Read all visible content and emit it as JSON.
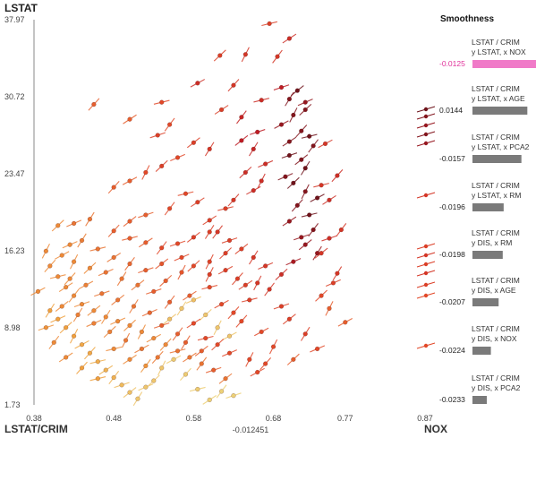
{
  "y_axis_label": "LSTAT",
  "x_axis_label": "LSTAT/CRIM",
  "x_axis_right_label": "NOX",
  "x_cursor_value": "-0.012451",
  "panel": {
    "title": "Smoothness",
    "items": [
      {
        "line1": "LSTAT / CRIM",
        "line2": "y LSTAT, x NOX",
        "value": "-0.0125",
        "selected": true
      },
      {
        "line1": "LSTAT / CRIM",
        "line2": "y LSTAT, x AGE",
        "value": "0.0144",
        "selected": false
      },
      {
        "line1": "LSTAT / CRIM",
        "line2": "y LSTAT, x PCA2",
        "value": "-0.0157",
        "selected": false
      },
      {
        "line1": "LSTAT / CRIM",
        "line2": "y LSTAT, x RM",
        "value": "-0.0196",
        "selected": false
      },
      {
        "line1": "LSTAT / CRIM",
        "line2": "y DIS, x RM",
        "value": "-0.0198",
        "selected": false
      },
      {
        "line1": "LSTAT / CRIM",
        "line2": "y DIS, x AGE",
        "value": "-0.0207",
        "selected": false
      },
      {
        "line1": "LSTAT / CRIM",
        "line2": "y DIS, x NOX",
        "value": "-0.0224",
        "selected": false
      },
      {
        "line1": "LSTAT / CRIM",
        "line2": "y DIS, x PCA2",
        "value": "-0.0233",
        "selected": false
      }
    ]
  },
  "colors": {
    "selected_bar": "#f07ac8",
    "bar": "#7a7a7a",
    "selected_text": "#e0309a"
  },
  "chart_data": {
    "type": "scatter",
    "title": "",
    "xlabel": "NOX",
    "ylabel": "LSTAT",
    "xlim": [
      0.38,
      0.87
    ],
    "ylim": [
      1.73,
      37.97
    ],
    "xticks": [
      "0.38",
      "0.48",
      "0.58",
      "0.68",
      "0.77",
      "0.87"
    ],
    "yticks": [
      "1.73",
      "8.98",
      "16.23",
      "23.47",
      "30.72",
      "37.97"
    ],
    "grid": false,
    "glyph": "dot with slope segment; color encodes value from pale yellow through orange and red to dark maroon",
    "points": [
      [
        0.675,
        37.6,
        0.5
      ],
      [
        0.7,
        36.2,
        0.6
      ],
      [
        0.685,
        34.5,
        0.55
      ],
      [
        0.69,
        31.6,
        0.7
      ],
      [
        0.71,
        31.3,
        0.9
      ],
      [
        0.7,
        30.5,
        0.85
      ],
      [
        0.72,
        30.2,
        0.8
      ],
      [
        0.72,
        29.5,
        0.85
      ],
      [
        0.705,
        29.0,
        0.85
      ],
      [
        0.69,
        28.1,
        0.8
      ],
      [
        0.715,
        27.5,
        0.85
      ],
      [
        0.725,
        27.0,
        0.9
      ],
      [
        0.7,
        26.5,
        0.85
      ],
      [
        0.73,
        26.1,
        0.85
      ],
      [
        0.7,
        25.2,
        0.9
      ],
      [
        0.715,
        24.8,
        0.85
      ],
      [
        0.72,
        24.0,
        0.9
      ],
      [
        0.695,
        23.2,
        0.85
      ],
      [
        0.705,
        22.6,
        0.9
      ],
      [
        0.72,
        21.8,
        0.85
      ],
      [
        0.735,
        21.2,
        0.9
      ],
      [
        0.71,
        20.5,
        0.85
      ],
      [
        0.725,
        19.6,
        0.9
      ],
      [
        0.7,
        19.0,
        0.8
      ],
      [
        0.73,
        18.2,
        0.85
      ],
      [
        0.715,
        17.5,
        0.8
      ],
      [
        0.72,
        16.8,
        0.8
      ],
      [
        0.735,
        16.0,
        0.8
      ],
      [
        0.705,
        15.2,
        0.75
      ],
      [
        0.613,
        34.6,
        0.5
      ],
      [
        0.645,
        34.7,
        0.55
      ],
      [
        0.585,
        32.0,
        0.6
      ],
      [
        0.63,
        31.8,
        0.55
      ],
      [
        0.665,
        30.4,
        0.6
      ],
      [
        0.615,
        29.5,
        0.5
      ],
      [
        0.64,
        28.8,
        0.65
      ],
      [
        0.66,
        27.4,
        0.7
      ],
      [
        0.64,
        26.6,
        0.7
      ],
      [
        0.655,
        25.8,
        0.65
      ],
      [
        0.67,
        24.4,
        0.6
      ],
      [
        0.645,
        23.6,
        0.6
      ],
      [
        0.665,
        22.8,
        0.6
      ],
      [
        0.655,
        21.9,
        0.6
      ],
      [
        0.63,
        21.0,
        0.55
      ],
      [
        0.62,
        20.2,
        0.5
      ],
      [
        0.6,
        19.1,
        0.5
      ],
      [
        0.61,
        18.0,
        0.55
      ],
      [
        0.625,
        17.2,
        0.5
      ],
      [
        0.64,
        16.4,
        0.5
      ],
      [
        0.655,
        15.6,
        0.55
      ],
      [
        0.67,
        14.8,
        0.55
      ],
      [
        0.69,
        14.0,
        0.6
      ],
      [
        0.66,
        13.2,
        0.55
      ],
      [
        0.745,
        26.3,
        0.55
      ],
      [
        0.76,
        23.3,
        0.6
      ],
      [
        0.74,
        22.4,
        0.55
      ],
      [
        0.75,
        21.0,
        0.6
      ],
      [
        0.765,
        18.2,
        0.55
      ],
      [
        0.75,
        17.4,
        0.6
      ],
      [
        0.74,
        16.0,
        0.55
      ],
      [
        0.76,
        14.1,
        0.55
      ],
      [
        0.755,
        13.2,
        0.5
      ],
      [
        0.74,
        12.0,
        0.45
      ],
      [
        0.75,
        10.8,
        0.4
      ],
      [
        0.77,
        9.5,
        0.4
      ],
      [
        0.455,
        30.0,
        0.4
      ],
      [
        0.54,
        30.2,
        0.45
      ],
      [
        0.5,
        28.6,
        0.4
      ],
      [
        0.55,
        28.1,
        0.45
      ],
      [
        0.535,
        27.1,
        0.5
      ],
      [
        0.58,
        26.4,
        0.5
      ],
      [
        0.6,
        25.8,
        0.55
      ],
      [
        0.56,
        25.0,
        0.45
      ],
      [
        0.54,
        24.2,
        0.5
      ],
      [
        0.52,
        23.6,
        0.45
      ],
      [
        0.5,
        22.8,
        0.4
      ],
      [
        0.48,
        22.2,
        0.4
      ],
      [
        0.57,
        21.6,
        0.45
      ],
      [
        0.585,
        20.8,
        0.5
      ],
      [
        0.55,
        20.2,
        0.45
      ],
      [
        0.52,
        19.6,
        0.4
      ],
      [
        0.5,
        19.0,
        0.4
      ],
      [
        0.45,
        19.2,
        0.35
      ],
      [
        0.43,
        18.8,
        0.35
      ],
      [
        0.41,
        18.6,
        0.3
      ],
      [
        0.395,
        16.2,
        0.3
      ],
      [
        0.385,
        12.4,
        0.3
      ],
      [
        0.48,
        18.1,
        0.4
      ],
      [
        0.5,
        17.4,
        0.4
      ],
      [
        0.52,
        17.0,
        0.4
      ],
      [
        0.54,
        16.5,
        0.45
      ],
      [
        0.56,
        16.9,
        0.45
      ],
      [
        0.58,
        17.5,
        0.5
      ],
      [
        0.6,
        18.0,
        0.5
      ],
      [
        0.565,
        15.6,
        0.45
      ],
      [
        0.58,
        14.8,
        0.45
      ],
      [
        0.6,
        14.0,
        0.5
      ],
      [
        0.62,
        14.4,
        0.5
      ],
      [
        0.635,
        13.6,
        0.5
      ],
      [
        0.6,
        12.8,
        0.45
      ],
      [
        0.575,
        12.0,
        0.4
      ],
      [
        0.55,
        11.4,
        0.4
      ],
      [
        0.53,
        12.4,
        0.4
      ],
      [
        0.51,
        13.0,
        0.35
      ],
      [
        0.49,
        13.6,
        0.35
      ],
      [
        0.47,
        14.2,
        0.35
      ],
      [
        0.45,
        14.6,
        0.3
      ],
      [
        0.43,
        15.2,
        0.3
      ],
      [
        0.415,
        15.8,
        0.3
      ],
      [
        0.4,
        14.8,
        0.3
      ],
      [
        0.41,
        13.8,
        0.3
      ],
      [
        0.42,
        12.8,
        0.3
      ],
      [
        0.43,
        12.0,
        0.3
      ],
      [
        0.44,
        11.2,
        0.3
      ],
      [
        0.455,
        10.6,
        0.3
      ],
      [
        0.47,
        10.0,
        0.3
      ],
      [
        0.485,
        9.6,
        0.3
      ],
      [
        0.5,
        9.2,
        0.3
      ],
      [
        0.515,
        8.6,
        0.3
      ],
      [
        0.53,
        8.0,
        0.3
      ],
      [
        0.545,
        7.4,
        0.3
      ],
      [
        0.56,
        6.8,
        0.35
      ],
      [
        0.575,
        6.2,
        0.35
      ],
      [
        0.59,
        5.6,
        0.35
      ],
      [
        0.605,
        5.0,
        0.4
      ],
      [
        0.62,
        4.2,
        0.35
      ],
      [
        0.4,
        10.6,
        0.25
      ],
      [
        0.41,
        9.8,
        0.25
      ],
      [
        0.42,
        9.0,
        0.25
      ],
      [
        0.43,
        8.2,
        0.25
      ],
      [
        0.44,
        7.4,
        0.22
      ],
      [
        0.45,
        6.6,
        0.22
      ],
      [
        0.46,
        5.8,
        0.2
      ],
      [
        0.47,
        5.0,
        0.18
      ],
      [
        0.48,
        4.3,
        0.18
      ],
      [
        0.49,
        3.6,
        0.15
      ],
      [
        0.5,
        2.9,
        0.12
      ],
      [
        0.51,
        2.3,
        0.1
      ],
      [
        0.52,
        3.4,
        0.1
      ],
      [
        0.53,
        4.0,
        0.1
      ],
      [
        0.54,
        5.2,
        0.1
      ],
      [
        0.555,
        6.0,
        0.08
      ],
      [
        0.57,
        4.6,
        0.08
      ],
      [
        0.585,
        3.2,
        0.08
      ],
      [
        0.6,
        2.2,
        0.06
      ],
      [
        0.615,
        3.0,
        0.06
      ],
      [
        0.63,
        2.6,
        0.06
      ],
      [
        0.55,
        9.8,
        0.12
      ],
      [
        0.565,
        10.8,
        0.1
      ],
      [
        0.58,
        11.6,
        0.12
      ],
      [
        0.595,
        10.2,
        0.1
      ],
      [
        0.61,
        9.0,
        0.1
      ],
      [
        0.625,
        8.2,
        0.1
      ],
      [
        0.44,
        5.2,
        0.25
      ],
      [
        0.46,
        4.2,
        0.25
      ],
      [
        0.42,
        6.2,
        0.3
      ],
      [
        0.405,
        7.6,
        0.3
      ],
      [
        0.395,
        9.0,
        0.28
      ],
      [
        0.415,
        11.0,
        0.3
      ],
      [
        0.435,
        10.2,
        0.32
      ],
      [
        0.455,
        9.4,
        0.32
      ],
      [
        0.475,
        8.6,
        0.32
      ],
      [
        0.495,
        7.8,
        0.34
      ],
      [
        0.515,
        7.0,
        0.34
      ],
      [
        0.535,
        6.2,
        0.34
      ],
      [
        0.48,
        7.0,
        0.3
      ],
      [
        0.5,
        6.0,
        0.3
      ],
      [
        0.52,
        5.4,
        0.28
      ],
      [
        0.465,
        12.2,
        0.35
      ],
      [
        0.485,
        11.6,
        0.35
      ],
      [
        0.505,
        11.0,
        0.35
      ],
      [
        0.525,
        10.4,
        0.38
      ],
      [
        0.545,
        13.4,
        0.4
      ],
      [
        0.565,
        14.2,
        0.42
      ],
      [
        0.445,
        13.0,
        0.32
      ],
      [
        0.425,
        13.6,
        0.3
      ],
      [
        0.46,
        16.4,
        0.35
      ],
      [
        0.48,
        15.6,
        0.35
      ],
      [
        0.5,
        15.0,
        0.38
      ],
      [
        0.52,
        14.4,
        0.4
      ],
      [
        0.54,
        15.0,
        0.42
      ],
      [
        0.44,
        17.2,
        0.33
      ],
      [
        0.425,
        16.8,
        0.3
      ],
      [
        0.62,
        16.0,
        0.5
      ],
      [
        0.6,
        15.2,
        0.48
      ],
      [
        0.615,
        11.2,
        0.45
      ],
      [
        0.63,
        10.4,
        0.45
      ],
      [
        0.65,
        11.6,
        0.5
      ],
      [
        0.645,
        13.0,
        0.5
      ],
      [
        0.675,
        12.6,
        0.55
      ],
      [
        0.69,
        11.0,
        0.5
      ],
      [
        0.7,
        9.8,
        0.5
      ],
      [
        0.72,
        8.4,
        0.5
      ],
      [
        0.735,
        7.0,
        0.45
      ],
      [
        0.705,
        6.0,
        0.4
      ],
      [
        0.68,
        7.2,
        0.45
      ],
      [
        0.665,
        8.6,
        0.45
      ],
      [
        0.64,
        9.6,
        0.45
      ],
      [
        0.595,
        8.0,
        0.45
      ],
      [
        0.58,
        9.4,
        0.45
      ],
      [
        0.56,
        8.4,
        0.4
      ],
      [
        0.54,
        9.2,
        0.4
      ],
      [
        0.59,
        6.8,
        0.4
      ],
      [
        0.57,
        7.6,
        0.4
      ],
      [
        0.625,
        6.6,
        0.45
      ],
      [
        0.61,
        7.4,
        0.45
      ],
      [
        0.65,
        6.0,
        0.45
      ],
      [
        0.66,
        4.8,
        0.45
      ],
      [
        0.67,
        5.6,
        0.45
      ]
    ]
  }
}
